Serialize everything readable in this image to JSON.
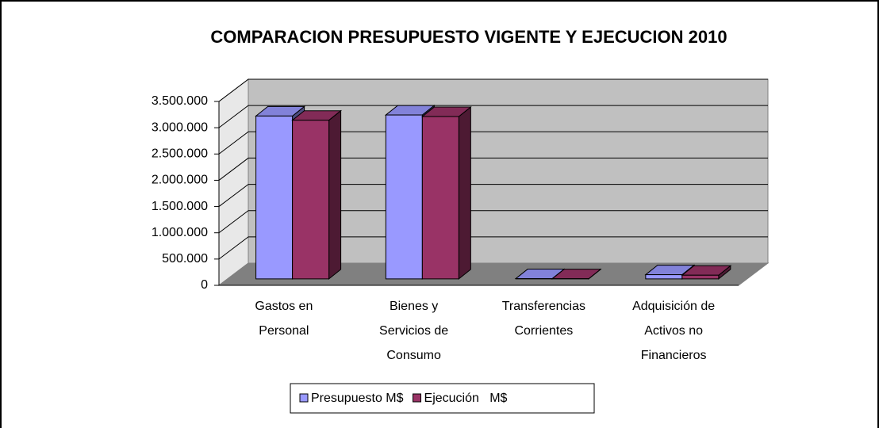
{
  "chart_data": {
    "type": "bar3d",
    "title": "COMPARACION PRESUPUESTO VIGENTE Y EJECUCION 2010",
    "categories": [
      "Gastos en Personal",
      "Bienes y Servicios de Consumo",
      "Transferencias Corrientes",
      "Adquisición de Activos no Financieros"
    ],
    "series": [
      {
        "name": "Presupuesto M$",
        "color": "#9999ff",
        "values": [
          3100000,
          3120000,
          5000,
          80000
        ]
      },
      {
        "name": "Ejecución   M$",
        "color": "#993366",
        "values": [
          3020000,
          3090000,
          3000,
          70000
        ]
      }
    ],
    "ylim": [
      0,
      3500000
    ],
    "yticks": [
      0,
      {
        "value": 500000,
        "label": "500.000"
      },
      {
        "value": 1000000,
        "label": "1.000.000"
      },
      {
        "value": 1500000,
        "label": "1.500.000"
      },
      {
        "value": 2000000,
        "label": "2.000.000"
      },
      {
        "value": 2500000,
        "label": "2.500.000"
      },
      {
        "value": 3000000,
        "label": "3.000.000"
      },
      {
        "value": 3500000,
        "label": "3.500.000"
      }
    ],
    "grid": true
  }
}
